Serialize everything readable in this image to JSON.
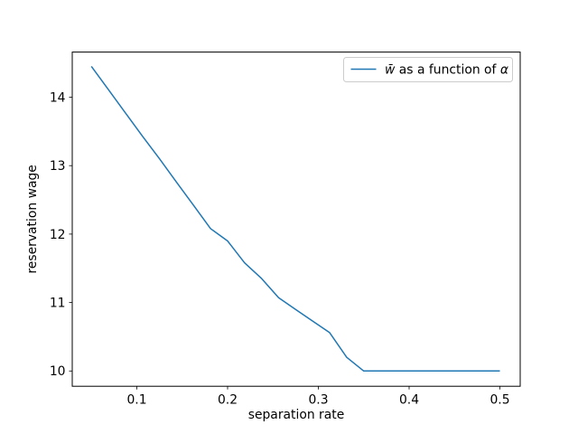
{
  "figure": {
    "background_color": "#ffffff",
    "spine_color": "#000000",
    "text_color": "#000000"
  },
  "chart_data": {
    "type": "line",
    "title": "",
    "xlabel": "separation rate",
    "ylabel": "reservation wage",
    "grid": false,
    "xlim": [
      0.0289,
      0.5224
    ],
    "ylim": [
      9.777,
      14.659
    ],
    "xticks": {
      "values": [
        0.1,
        0.2,
        0.3,
        0.4,
        0.5
      ],
      "labels": [
        "0.1",
        "0.2",
        "0.3",
        "0.4",
        "0.5"
      ]
    },
    "yticks": {
      "values": [
        10,
        11,
        12,
        13,
        14
      ],
      "labels": [
        "10",
        "11",
        "12",
        "13",
        "14"
      ]
    },
    "x": [
      0.05,
      0.06875,
      0.0875,
      0.10625,
      0.125,
      0.14375,
      0.1625,
      0.18125,
      0.2,
      0.21875,
      0.2375,
      0.25625,
      0.275,
      0.29375,
      0.3125,
      0.33125,
      0.35,
      0.36875,
      0.3875,
      0.40625,
      0.425,
      0.44375,
      0.4625,
      0.48125,
      0.5
    ],
    "series": [
      {
        "name": "w̄ as a function of α",
        "color": "#1f77b4",
        "values": [
          14.45,
          14.11,
          13.77,
          13.43,
          13.1,
          12.76,
          12.42,
          12.08,
          11.9,
          11.58,
          11.35,
          11.07,
          10.9,
          10.73,
          10.56,
          10.2,
          10.0,
          10.0,
          10.0,
          10.0,
          10.0,
          10.0,
          10.0,
          10.0,
          10.0
        ]
      }
    ],
    "legend": {
      "position": "upper right",
      "frame_color": "#cccccc",
      "full_label": "w̄ as a function of α",
      "label_parts": {
        "w": "w̄",
        "middle": " as a function of ",
        "alpha": "α"
      }
    }
  }
}
